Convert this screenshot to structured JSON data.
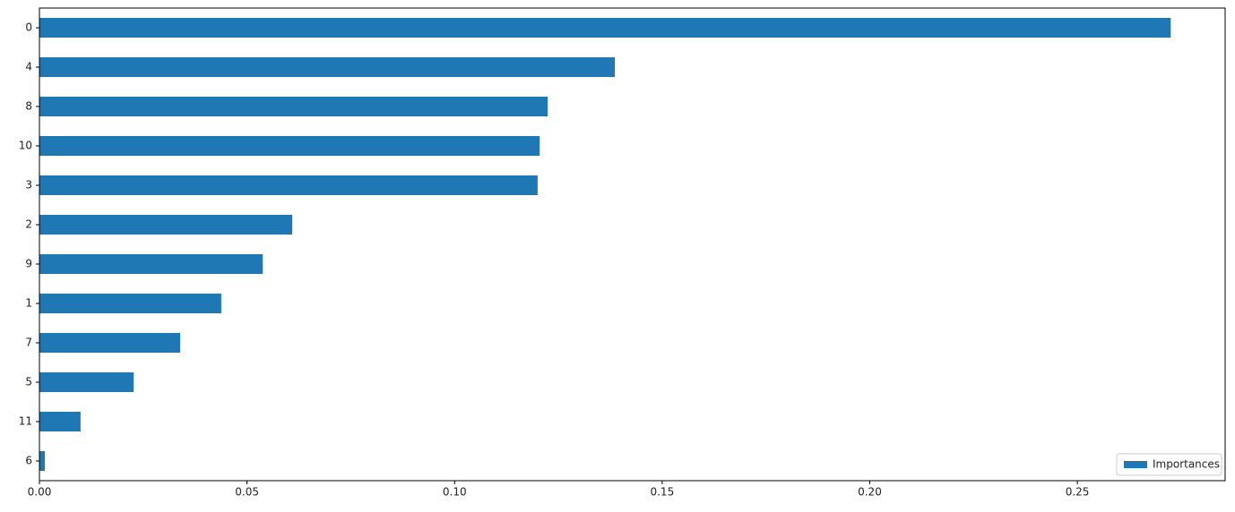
{
  "chart_data": {
    "type": "barh",
    "categories": [
      "0",
      "4",
      "8",
      "10",
      "3",
      "2",
      "9",
      "1",
      "7",
      "5",
      "11",
      "6"
    ],
    "series": [
      {
        "name": "Importances",
        "color": "#1f77b4",
        "values": [
          0.2725,
          0.1386,
          0.1224,
          0.1205,
          0.12,
          0.0609,
          0.0538,
          0.0438,
          0.0339,
          0.0227,
          0.0099,
          0.0013
        ]
      }
    ],
    "xlim": [
      0,
      0.2856
    ],
    "xticks": [
      {
        "value": 0,
        "label": "0.00"
      },
      {
        "value": 0.05,
        "label": "0.05"
      },
      {
        "value": 0.1,
        "label": "0.10"
      },
      {
        "value": 0.15,
        "label": "0.15"
      },
      {
        "value": 0.2,
        "label": "0.20"
      },
      {
        "value": 0.25,
        "label": "0.25"
      }
    ],
    "legend": "lower right"
  }
}
